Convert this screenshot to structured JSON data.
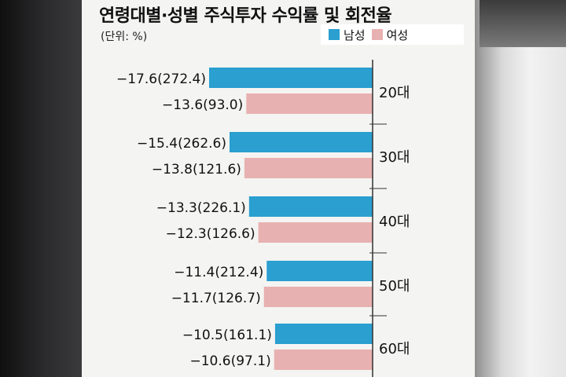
{
  "title": "연령대별·성별 주식투자 수익률 및 회전율",
  "unit": "(단위: %)",
  "colors": {
    "male": "#2a9fd0",
    "female": "#e8b1b1",
    "axis": "#333333"
  },
  "legend": [
    {
      "label": "남성",
      "series": "male"
    },
    {
      "label": "여성",
      "series": "female"
    }
  ],
  "chart_data": {
    "type": "bar",
    "orientation": "horizontal",
    "categories": [
      "20대",
      "30대",
      "40대",
      "50대",
      "60대"
    ],
    "series": [
      {
        "name": "남성",
        "values": [
          -17.6,
          -15.4,
          -13.3,
          -11.4,
          -10.5
        ],
        "turnover": [
          272.4,
          262.6,
          226.1,
          212.4,
          161.1
        ]
      },
      {
        "name": "여성",
        "values": [
          -13.6,
          -13.8,
          -12.3,
          -11.7,
          -10.6
        ],
        "turnover": [
          93.0,
          121.6,
          126.6,
          126.7,
          97.1
        ]
      }
    ],
    "labels": [
      [
        "−17.6(272.4)",
        "−13.6(93.0)"
      ],
      [
        "−15.4(262.6)",
        "−13.8(121.6)"
      ],
      [
        "−13.3(226.1)",
        "−12.3(126.6)"
      ],
      [
        "−11.4(212.4)",
        "−11.7(126.7)"
      ],
      [
        "−10.5(161.1)",
        "−10.6(97.1)"
      ]
    ],
    "xlim": [
      -17.6,
      0
    ],
    "grid": false,
    "legend_position": "top-right"
  }
}
